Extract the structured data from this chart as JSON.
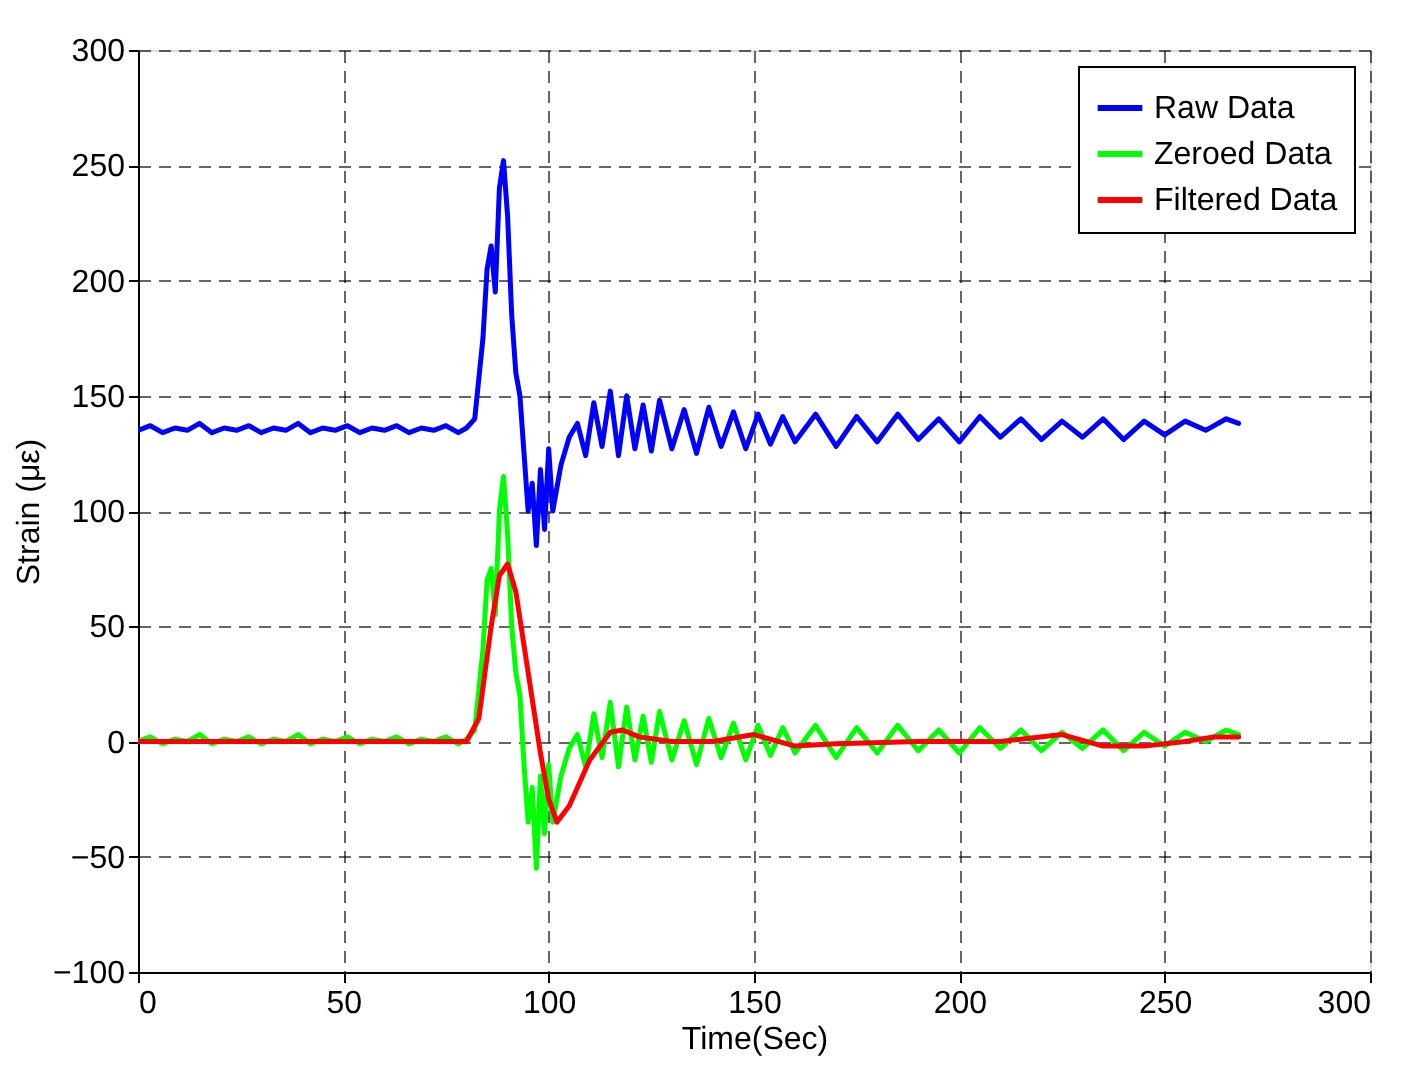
{
  "chart_data": {
    "type": "line",
    "xlabel": "Time(Sec)",
    "ylabel": "Strain  (με)",
    "xlim": [
      0,
      300
    ],
    "ylim": [
      -100,
      300
    ],
    "xticks": [
      0,
      50,
      100,
      150,
      200,
      250,
      300
    ],
    "yticks": [
      -100,
      -50,
      0,
      50,
      100,
      150,
      200,
      250,
      300
    ],
    "grid": true,
    "legend": "top right",
    "line_style": "solid",
    "marker": "none",
    "series": [
      {
        "name": "Raw Data",
        "color": "#0000ff",
        "x": [
          0,
          3,
          6,
          9,
          12,
          15,
          18,
          21,
          24,
          27,
          30,
          33,
          36,
          39,
          42,
          45,
          48,
          51,
          54,
          57,
          60,
          63,
          66,
          69,
          72,
          75,
          78,
          80,
          82,
          84,
          85,
          86,
          87,
          88,
          89,
          90,
          91,
          92,
          93,
          94,
          95,
          96,
          97,
          98,
          99,
          100,
          101,
          103,
          105,
          107,
          109,
          111,
          113,
          115,
          117,
          119,
          121,
          123,
          125,
          127,
          130,
          133,
          136,
          139,
          142,
          145,
          148,
          151,
          154,
          157,
          160,
          165,
          170,
          175,
          180,
          185,
          190,
          195,
          200,
          205,
          210,
          215,
          220,
          225,
          230,
          235,
          240,
          245,
          250,
          255,
          260,
          265,
          268
        ],
        "values": [
          135,
          137,
          134,
          136,
          135,
          138,
          134,
          136,
          135,
          137,
          134,
          136,
          135,
          138,
          134,
          136,
          135,
          137,
          134,
          136,
          135,
          137,
          134,
          136,
          135,
          137,
          134,
          136,
          140,
          175,
          205,
          215,
          195,
          240,
          252,
          228,
          185,
          160,
          150,
          125,
          100,
          112,
          85,
          118,
          92,
          127,
          100,
          120,
          132,
          138,
          124,
          147,
          128,
          152,
          124,
          150,
          127,
          146,
          126,
          148,
          127,
          144,
          125,
          145,
          128,
          143,
          127,
          142,
          129,
          141,
          130,
          142,
          128,
          141,
          130,
          142,
          131,
          140,
          130,
          141,
          132,
          140,
          131,
          139,
          132,
          140,
          131,
          139,
          133,
          139,
          135,
          140,
          138
        ]
      },
      {
        "name": "Zeroed Data",
        "color": "#00ff00",
        "x": [
          0,
          3,
          6,
          9,
          12,
          15,
          18,
          21,
          24,
          27,
          30,
          33,
          36,
          39,
          42,
          45,
          48,
          51,
          54,
          57,
          60,
          63,
          66,
          69,
          72,
          75,
          78,
          80,
          82,
          84,
          85,
          86,
          87,
          88,
          89,
          90,
          91,
          92,
          93,
          94,
          95,
          96,
          97,
          98,
          99,
          100,
          101,
          103,
          105,
          107,
          109,
          111,
          113,
          115,
          117,
          119,
          121,
          123,
          125,
          127,
          130,
          133,
          136,
          139,
          142,
          145,
          148,
          151,
          154,
          157,
          160,
          165,
          170,
          175,
          180,
          185,
          190,
          195,
          200,
          205,
          210,
          215,
          220,
          225,
          230,
          235,
          240,
          245,
          250,
          255,
          260,
          265,
          268
        ],
        "values": [
          0,
          2,
          -1,
          1,
          0,
          3,
          -1,
          1,
          0,
          2,
          -1,
          1,
          0,
          3,
          -1,
          1,
          0,
          2,
          -1,
          1,
          0,
          2,
          -1,
          1,
          0,
          2,
          -1,
          1,
          5,
          40,
          70,
          75,
          55,
          100,
          115,
          90,
          50,
          30,
          20,
          -10,
          -35,
          -20,
          -55,
          -15,
          -40,
          -10,
          -35,
          -15,
          -3,
          3,
          -11,
          12,
          -7,
          17,
          -11,
          15,
          -8,
          11,
          -9,
          13,
          -8,
          9,
          -10,
          10,
          -7,
          8,
          -8,
          7,
          -6,
          6,
          -5,
          7,
          -7,
          6,
          -5,
          7,
          -4,
          5,
          -5,
          6,
          -3,
          5,
          -4,
          4,
          -3,
          5,
          -4,
          4,
          -2,
          4,
          0,
          5,
          3
        ]
      },
      {
        "name": "Filtered Data",
        "color": "#ff0000",
        "x": [
          0,
          20,
          40,
          60,
          80,
          83,
          86,
          88,
          90,
          92,
          95,
          98,
          100,
          102,
          105,
          110,
          115,
          118,
          122,
          130,
          140,
          150,
          160,
          170,
          190,
          210,
          225,
          235,
          245,
          255,
          262,
          268
        ],
        "values": [
          0,
          0,
          0,
          0,
          0,
          10,
          50,
          72,
          77,
          65,
          30,
          -5,
          -25,
          -35,
          -28,
          -8,
          4,
          5,
          2,
          0,
          0,
          3,
          -2,
          -1,
          0,
          0,
          3,
          -2,
          -2,
          0,
          2,
          2
        ]
      }
    ]
  }
}
